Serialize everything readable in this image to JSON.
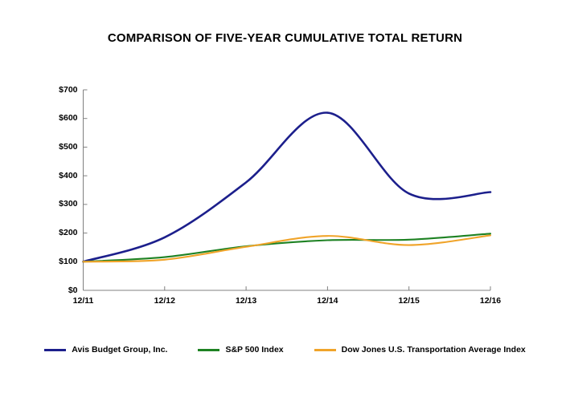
{
  "title": "COMPARISON OF FIVE-YEAR CUMULATIVE TOTAL RETURN",
  "chart_data": {
    "type": "line",
    "title": "COMPARISON OF FIVE-YEAR CUMULATIVE TOTAL RETURN",
    "categories": [
      "12/11",
      "12/12",
      "12/13",
      "12/14",
      "12/15",
      "12/16"
    ],
    "series": [
      {
        "name": "Avis Budget Group, Inc.",
        "color": "#1c1f8c",
        "stroke_width": 2.6,
        "values": [
          100,
          185,
          377,
          620,
          338,
          343
        ]
      },
      {
        "name": "S&P 500 Index",
        "color": "#1e8223",
        "stroke_width": 2.1,
        "values": [
          100,
          116,
          154,
          175,
          177,
          198
        ]
      },
      {
        "name": "Dow Jones U.S. Transportation Average Index",
        "color": "#f0a42a",
        "stroke_width": 2.1,
        "values": [
          100,
          107,
          152,
          190,
          158,
          192
        ]
      }
    ],
    "ylim": [
      0,
      700
    ],
    "y_tick_step": 100,
    "y_tick_labels": [
      "$0",
      "$100",
      "$200",
      "$300",
      "$400",
      "$500",
      "$600",
      "$700"
    ],
    "x_tick_labels": [
      "12/11",
      "12/12",
      "12/13",
      "12/14",
      "12/15",
      "12/16"
    ],
    "grid": false,
    "smooth": true,
    "legend_position": "bottom",
    "axis_color": "#808080",
    "text_color": "#000000",
    "background_color": "#ffffff"
  }
}
